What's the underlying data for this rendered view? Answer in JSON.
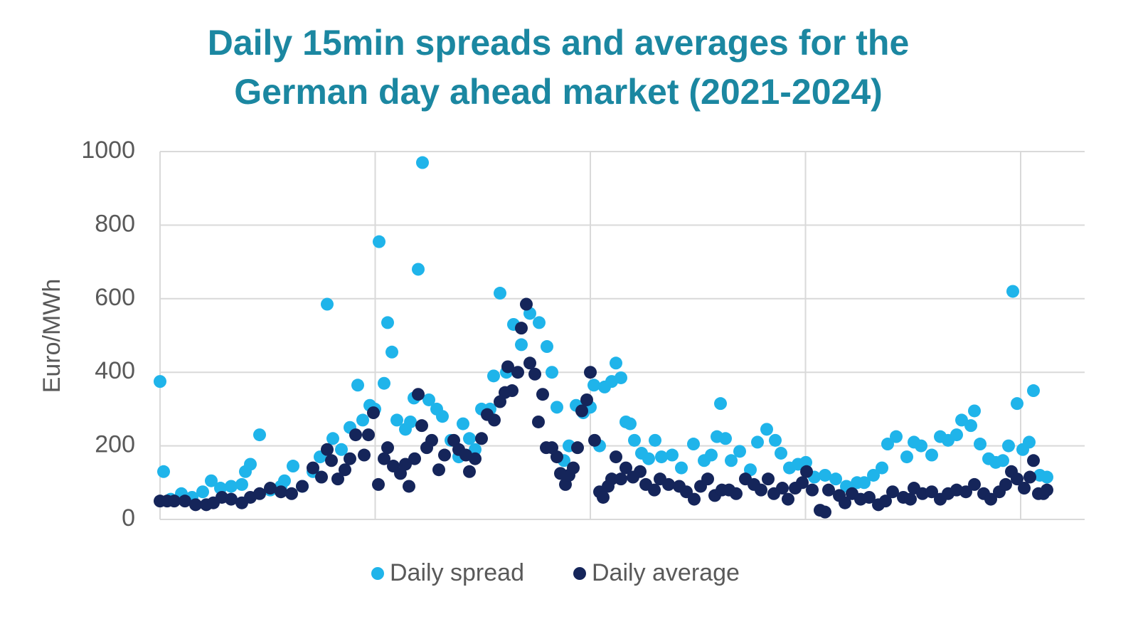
{
  "chart_data": {
    "type": "scatter",
    "title": [
      "Daily 15min spreads and averages for the",
      "German day ahead market (2021-2024)"
    ],
    "y_label": "Euro/MWh",
    "xlim": [
      0,
      1300
    ],
    "xticks": [
      0,
      302.5,
      605,
      907.5,
      1210
    ],
    "ylim": [
      0,
      1000
    ],
    "yticks": [
      0,
      200,
      400,
      600,
      800,
      1000
    ],
    "grid": true,
    "legend": "bottom",
    "series": [
      {
        "name": "Daily spread",
        "color": "#1fb4ea",
        "x": [
          0,
          5,
          15,
          30,
          45,
          60,
          72,
          85,
          100,
          115,
          120,
          127,
          140,
          155,
          170,
          175,
          187,
          200,
          215,
          225,
          235,
          243,
          255,
          267,
          278,
          285,
          295,
          302,
          308,
          315,
          320,
          326,
          333,
          345,
          352,
          357,
          363,
          369,
          378,
          389,
          397,
          409,
          420,
          426,
          435,
          443,
          452,
          464,
          469,
          478,
          487,
          497,
          508,
          520,
          533,
          544,
          551,
          558,
          568,
          575,
          585,
          595,
          605,
          610,
          618,
          625,
          635,
          641,
          648,
          655,
          661,
          667,
          677,
          687,
          696,
          705,
          720,
          733,
          750,
          765,
          775,
          783,
          788,
          795,
          803,
          815,
          830,
          840,
          853,
          865,
          873,
          885,
          897,
          908,
          920,
          935,
          950,
          965,
          980,
          990,
          1003,
          1015,
          1023,
          1035,
          1050,
          1060,
          1070,
          1085,
          1097,
          1108,
          1120,
          1127,
          1140,
          1145,
          1153,
          1165,
          1175,
          1185,
          1193,
          1199,
          1205,
          1213,
          1222,
          1228,
          1237,
          1247
        ],
        "values": [
          375,
          130,
          55,
          70,
          60,
          75,
          105,
          85,
          90,
          95,
          130,
          150,
          230,
          80,
          90,
          105,
          145,
          90,
          130,
          170,
          585,
          220,
          190,
          250,
          365,
          270,
          310,
          300,
          755,
          370,
          535,
          455,
          270,
          245,
          265,
          330,
          680,
          970,
          325,
          300,
          280,
          215,
          170,
          260,
          220,
          190,
          300,
          300,
          390,
          615,
          400,
          530,
          475,
          560,
          535,
          470,
          400,
          305,
          160,
          200,
          310,
          290,
          305,
          365,
          200,
          360,
          375,
          425,
          385,
          265,
          260,
          215,
          180,
          165,
          215,
          170,
          175,
          140,
          205,
          160,
          175,
          225,
          315,
          220,
          160,
          185,
          135,
          210,
          245,
          215,
          180,
          140,
          150,
          155,
          115,
          120,
          110,
          90,
          100,
          100,
          120,
          140,
          205,
          225,
          170,
          210,
          200,
          175,
          225,
          215,
          230,
          270,
          255,
          295,
          205,
          165,
          155,
          160,
          200,
          620,
          315,
          190,
          210,
          350,
          120,
          115
        ]
      },
      {
        "name": "Daily average",
        "color": "#15255a",
        "x": [
          0,
          10,
          20,
          35,
          50,
          65,
          75,
          87,
          100,
          115,
          127,
          140,
          155,
          170,
          185,
          200,
          215,
          227,
          235,
          241,
          250,
          260,
          267,
          275,
          287,
          293,
          300,
          307,
          315,
          320,
          328,
          338,
          345,
          350,
          358,
          363,
          368,
          375,
          382,
          392,
          400,
          413,
          420,
          430,
          435,
          443,
          452,
          460,
          470,
          478,
          485,
          489,
          495,
          503,
          508,
          515,
          520,
          527,
          532,
          538,
          543,
          551,
          558,
          563,
          570,
          575,
          581,
          587,
          593,
          600,
          605,
          611,
          618,
          623,
          630,
          635,
          641,
          648,
          655,
          665,
          675,
          683,
          695,
          703,
          715,
          730,
          740,
          751,
          760,
          770,
          780,
          790,
          800,
          810,
          823,
          835,
          845,
          855,
          863,
          875,
          883,
          893,
          903,
          909,
          917,
          928,
          935,
          940,
          955,
          963,
          973,
          985,
          997,
          1010,
          1020,
          1030,
          1045,
          1055,
          1060,
          1072,
          1085,
          1097,
          1108,
          1120,
          1133,
          1145,
          1158,
          1168,
          1180,
          1189,
          1197,
          1205,
          1215,
          1223,
          1228,
          1235,
          1242,
          1247
        ],
        "values": [
          50,
          50,
          50,
          50,
          40,
          40,
          45,
          60,
          55,
          45,
          60,
          70,
          85,
          75,
          70,
          90,
          140,
          115,
          190,
          160,
          110,
          135,
          165,
          230,
          175,
          230,
          290,
          95,
          165,
          195,
          145,
          125,
          150,
          90,
          165,
          340,
          255,
          195,
          215,
          135,
          175,
          215,
          190,
          175,
          130,
          165,
          220,
          285,
          270,
          320,
          345,
          415,
          350,
          400,
          520,
          585,
          425,
          395,
          265,
          340,
          195,
          195,
          170,
          125,
          95,
          120,
          140,
          195,
          295,
          325,
          400,
          215,
          75,
          60,
          90,
          110,
          170,
          110,
          140,
          115,
          130,
          95,
          80,
          110,
          95,
          90,
          75,
          55,
          90,
          110,
          65,
          80,
          80,
          70,
          110,
          95,
          80,
          110,
          70,
          85,
          55,
          85,
          100,
          130,
          80,
          25,
          20,
          80,
          65,
          45,
          70,
          55,
          60,
          40,
          50,
          75,
          60,
          55,
          85,
          70,
          75,
          55,
          70,
          80,
          75,
          95,
          70,
          55,
          75,
          95,
          130,
          110,
          85,
          115,
          160,
          70,
          70,
          80
        ]
      }
    ]
  }
}
